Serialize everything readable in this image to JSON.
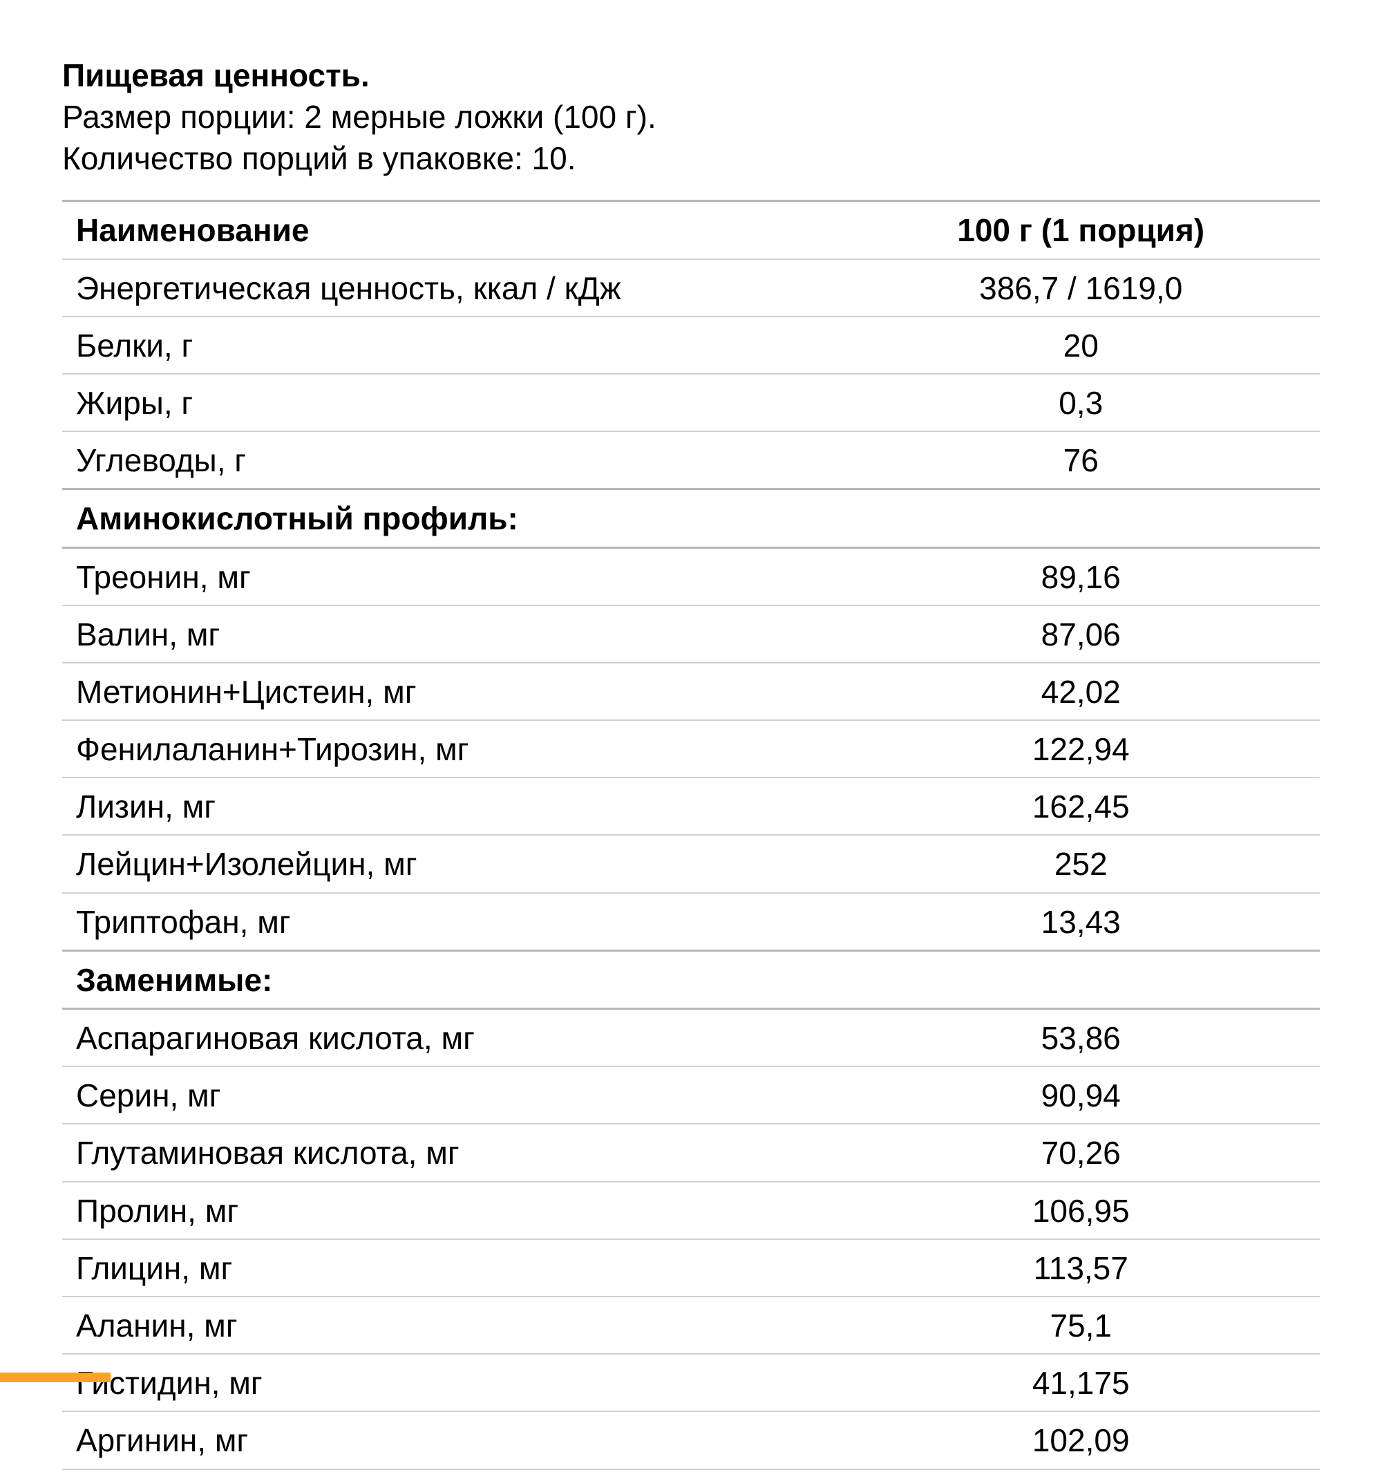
{
  "header": {
    "title": "Пищевая ценность.",
    "serving_size": "Размер порции: 2 мерные ложки (100 г).",
    "servings_per_container": "Количество порций в упаковке: 10."
  },
  "table": {
    "columns": {
      "name": "Наименование",
      "value": "100 г (1 порция)"
    },
    "sections": [
      {
        "type": "data",
        "rows": [
          {
            "label": "Энергетическая ценность, ккал / кДж",
            "value": "386,7 / 1619,0"
          },
          {
            "label": "Белки, г",
            "value": "20"
          },
          {
            "label": "Жиры, г",
            "value": "0,3"
          },
          {
            "label": "Углеводы, г",
            "value": "76"
          }
        ]
      },
      {
        "type": "section",
        "title": "Аминокислотный профиль:",
        "rows": [
          {
            "label": "Треонин, мг",
            "value": "89,16"
          },
          {
            "label": "Валин, мг",
            "value": "87,06"
          },
          {
            "label": "Метионин+Цистеин, мг",
            "value": "42,02"
          },
          {
            "label": "Фенилаланин+Тирозин, мг",
            "value": "122,94"
          },
          {
            "label": "Лизин, мг",
            "value": "162,45"
          },
          {
            "label": "Лейцин+Изолейцин, мг",
            "value": "252"
          },
          {
            "label": "Триптофан, мг",
            "value": "13,43"
          }
        ]
      },
      {
        "type": "section",
        "title": "Заменимые:",
        "rows": [
          {
            "label": "Аспарагиновая кислота, мг",
            "value": "53,86"
          },
          {
            "label": "Серин, мг",
            "value": "90,94"
          },
          {
            "label": "Глутаминовая кислота, мг",
            "value": "70,26"
          },
          {
            "label": "Пролин, мг",
            "value": "106,95"
          },
          {
            "label": "Глицин, мг",
            "value": "113,57"
          },
          {
            "label": "Аланин, мг",
            "value": "75,1"
          },
          {
            "label": "Гистидин, мг",
            "value": "41,175"
          },
          {
            "label": "Аргинин, мг",
            "value": "102,09"
          }
        ]
      }
    ]
  },
  "styling": {
    "background_color": "#ffffff",
    "text_color": "#000000",
    "border_color_light": "#d0d0d0",
    "border_color_heavy": "#b8b8b8",
    "accent_color": "#f5a623",
    "font_size_body": 46,
    "font_family": "Arial"
  }
}
